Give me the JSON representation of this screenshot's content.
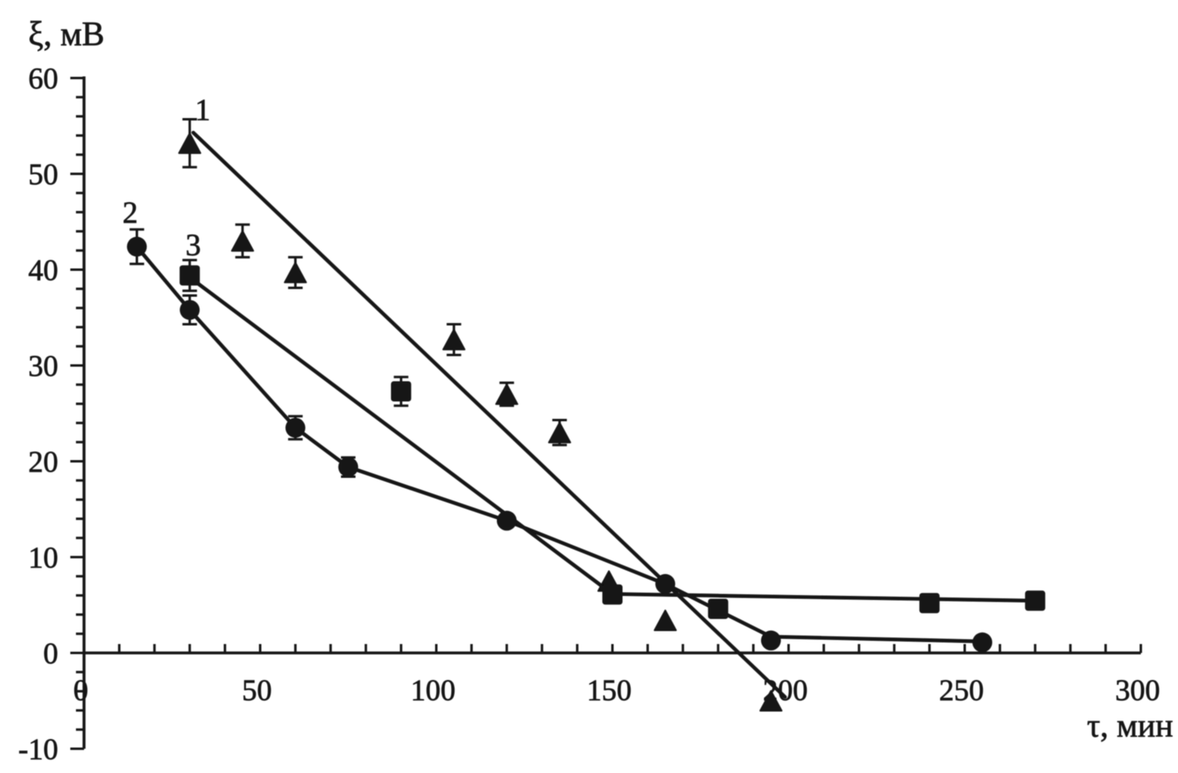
{
  "figure": {
    "background": "#ffffff",
    "ink_color": "#121212"
  },
  "chart_data": {
    "type": "scatter",
    "title": "",
    "xlabel": "τ, мин",
    "ylabel": "ξ, мВ",
    "xlim": [
      0,
      300
    ],
    "ylim": [
      -10,
      60
    ],
    "x_ticks": [
      0,
      50,
      100,
      150,
      200,
      250,
      300
    ],
    "x_tick_labels": [
      "0",
      "50",
      "100",
      "150",
      "200",
      "250",
      "300"
    ],
    "x_minor_step": 10,
    "y_ticks": [
      -10,
      0,
      10,
      20,
      30,
      40,
      50,
      60
    ],
    "y_tick_labels": [
      "-10",
      "0",
      "10",
      "20",
      "30",
      "40",
      "50",
      "60"
    ],
    "y_minor_step": 2,
    "grid": false,
    "legend_position": "none",
    "series": [
      {
        "name": "1",
        "marker": "triangle",
        "points": [
          {
            "x": 30,
            "y": 53.2,
            "err": 2.5
          },
          {
            "x": 45,
            "y": 43.0,
            "err": 1.7
          },
          {
            "x": 60,
            "y": 39.7,
            "err": 1.6
          },
          {
            "x": 105,
            "y": 32.7,
            "err": 1.6
          },
          {
            "x": 120,
            "y": 27.0,
            "err": 1.2
          },
          {
            "x": 135,
            "y": 23.0,
            "err": 1.3
          },
          {
            "x": 149,
            "y": 7.5
          },
          {
            "x": 165,
            "y": 3.4
          },
          {
            "x": 195,
            "y": -5.0
          }
        ],
        "line_path": [
          [
            31,
            54.3
          ],
          [
            199,
            -4.6
          ]
        ],
        "line_kind": "straight trend line",
        "label": {
          "text": "1",
          "x": 33.7,
          "y": 56.7
        }
      },
      {
        "name": "2",
        "marker": "circle",
        "points": [
          {
            "x": 15,
            "y": 42.4,
            "err": 1.8
          },
          {
            "x": 30,
            "y": 35.8,
            "err": 1.5
          },
          {
            "x": 60,
            "y": 23.5,
            "err": 1.2
          },
          {
            "x": 75,
            "y": 19.4,
            "err": 1.0
          },
          {
            "x": 120,
            "y": 13.8
          },
          {
            "x": 165,
            "y": 7.2
          },
          {
            "x": 195,
            "y": 1.3
          },
          {
            "x": 255,
            "y": 1.1
          }
        ],
        "line_path": [
          [
            15,
            42.4
          ],
          [
            30,
            35.8
          ],
          [
            60,
            23.5
          ],
          [
            75,
            19.4
          ],
          [
            120,
            13.8
          ],
          [
            165,
            7.2
          ],
          [
            195,
            1.7
          ],
          [
            255,
            1.2
          ]
        ],
        "line_kind": "segmented line through points",
        "label": {
          "text": "2",
          "x": 13.1,
          "y": 46.0
        }
      },
      {
        "name": "3",
        "marker": "square",
        "points": [
          {
            "x": 30,
            "y": 39.4,
            "err": 1.6
          },
          {
            "x": 90,
            "y": 27.3,
            "err": 1.5
          },
          {
            "x": 150,
            "y": 6.1
          },
          {
            "x": 180,
            "y": 4.6
          },
          {
            "x": 240,
            "y": 5.2
          },
          {
            "x": 270,
            "y": 5.45
          }
        ],
        "line_path": [
          [
            30,
            39.2
          ],
          [
            150,
            6.15
          ],
          [
            270,
            5.45
          ]
        ],
        "line_kind": "two-segment trend line",
        "label": {
          "text": "3",
          "x": 31.0,
          "y": 42.6
        }
      }
    ]
  }
}
